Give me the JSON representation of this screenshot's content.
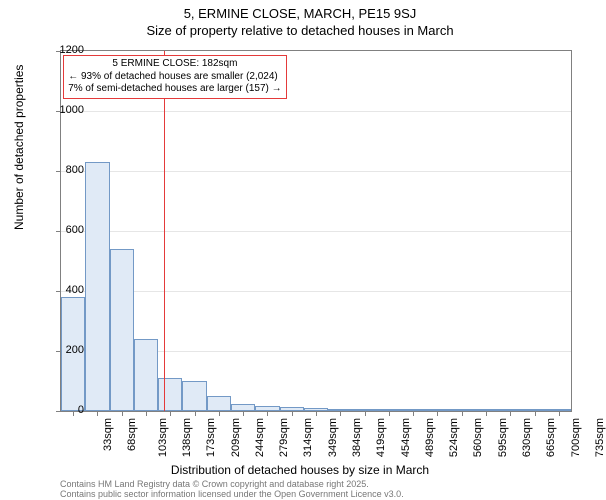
{
  "title_main": "5, ERMINE CLOSE, MARCH, PE15 9SJ",
  "title_sub": "Size of property relative to detached houses in March",
  "ylabel": "Number of detached properties",
  "xlabel": "Distribution of detached houses by size in March",
  "chart": {
    "type": "histogram",
    "ylim": [
      0,
      1200
    ],
    "ytick_step": 200,
    "yticks": [
      0,
      200,
      400,
      600,
      800,
      1000,
      1200
    ],
    "xticks": [
      "33sqm",
      "68sqm",
      "103sqm",
      "138sqm",
      "173sqm",
      "209sqm",
      "244sqm",
      "279sqm",
      "314sqm",
      "349sqm",
      "384sqm",
      "419sqm",
      "454sqm",
      "489sqm",
      "524sqm",
      "560sqm",
      "595sqm",
      "630sqm",
      "665sqm",
      "700sqm",
      "735sqm"
    ],
    "values": [
      380,
      830,
      540,
      240,
      110,
      100,
      50,
      25,
      18,
      12,
      10,
      8,
      5,
      3,
      2,
      1,
      1,
      0,
      0,
      0,
      0
    ],
    "bar_fill": "#e0eaf6",
    "bar_border": "#7399c6",
    "background": "#ffffff",
    "grid_color": "#e6e6e6",
    "axis_color": "#808080",
    "reference_line": {
      "position_index": 4.25,
      "color": "#e43a3a"
    }
  },
  "annotation": {
    "line1": "5 ERMINE CLOSE: 182sqm",
    "line2": "← 93% of detached houses are smaller (2,024)",
    "line3": "7% of semi-detached houses are larger (157) →",
    "border_color": "#e43a3a"
  },
  "footer": {
    "line1": "Contains HM Land Registry data © Crown copyright and database right 2025.",
    "line2": "Contains public sector information licensed under the Open Government Licence v3.0.",
    "color": "#777777"
  }
}
